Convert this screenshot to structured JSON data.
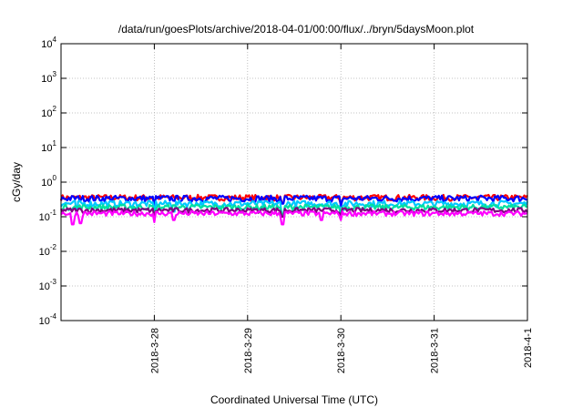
{
  "chart_data": {
    "type": "line",
    "title": "/data/run/goesPlots/archive/2018-04-01/00:00/flux/../bryn/5daysMoon.plot",
    "xlabel": "Coordinated Universal Time (UTC)",
    "ylabel": "cGy/day",
    "y_scale": "log",
    "ylim": [
      0.0001,
      10000
    ],
    "y_ticks": [
      {
        "value": 10000,
        "base": "10",
        "exp": "4"
      },
      {
        "value": 1000,
        "base": "10",
        "exp": "3"
      },
      {
        "value": 100,
        "base": "10",
        "exp": "2"
      },
      {
        "value": 10,
        "base": "10",
        "exp": "1"
      },
      {
        "value": 1,
        "base": "10",
        "exp": "0"
      },
      {
        "value": 0.1,
        "base": "10",
        "exp": "-1"
      },
      {
        "value": 0.01,
        "base": "10",
        "exp": "-2"
      },
      {
        "value": 0.001,
        "base": "10",
        "exp": "-3"
      },
      {
        "value": 0.0001,
        "base": "10",
        "exp": "-4"
      }
    ],
    "xlim": [
      "2018-03-27 00:00",
      "2018-04-01 00:00"
    ],
    "x_ticks": [
      "2018-3-28",
      "2018-3-29",
      "2018-3-30",
      "2018-3-31",
      "2018-4-1"
    ],
    "grid": true,
    "legend": "none",
    "series": [
      {
        "color": "#ff0000",
        "base": 0.36,
        "noise": 0.07,
        "dips": [
          {
            "x": "2018-03-28 00:00",
            "v": 0.22
          },
          {
            "x": "2018-03-29 09:00",
            "v": 0.25
          },
          {
            "x": "2018-03-30 00:00",
            "v": 0.22
          }
        ]
      },
      {
        "color": "#0000ff",
        "base": 0.34,
        "noise": 0.07,
        "dips": [
          {
            "x": "2018-03-28 00:00",
            "v": 0.2
          },
          {
            "x": "2018-03-29 09:00",
            "v": 0.24
          },
          {
            "x": "2018-03-30 00:00",
            "v": 0.2
          }
        ]
      },
      {
        "color": "#00c8ff",
        "base": 0.24,
        "noise": 0.05,
        "dips": [
          {
            "x": "2018-03-27 04:00",
            "v": 0.12
          },
          {
            "x": "2018-03-28 00:00",
            "v": 0.12
          },
          {
            "x": "2018-03-28 05:00",
            "v": 0.14
          },
          {
            "x": "2018-03-29 09:00",
            "v": 0.11
          },
          {
            "x": "2018-03-30 00:00",
            "v": 0.11
          }
        ]
      },
      {
        "color": "#00e0a0",
        "base": 0.19,
        "noise": 0.035,
        "dips": [
          {
            "x": "2018-03-28 00:00",
            "v": 0.12
          },
          {
            "x": "2018-03-29 09:00",
            "v": 0.12
          },
          {
            "x": "2018-03-30 00:00",
            "v": 0.12
          }
        ]
      },
      {
        "color": "#800080",
        "base": 0.155,
        "noise": 0.025,
        "dips": [
          {
            "x": "2018-03-28 00:00",
            "v": 0.1
          },
          {
            "x": "2018-03-29 09:00",
            "v": 0.1
          },
          {
            "x": "2018-03-30 00:00",
            "v": 0.1
          }
        ]
      },
      {
        "color": "#ff00ff",
        "base": 0.125,
        "noise": 0.02,
        "dips": [
          {
            "x": "2018-03-27 03:00",
            "v": 0.06
          },
          {
            "x": "2018-03-27 05:00",
            "v": 0.065
          },
          {
            "x": "2018-03-28 00:00",
            "v": 0.07
          },
          {
            "x": "2018-03-28 05:00",
            "v": 0.08
          },
          {
            "x": "2018-03-29 09:00",
            "v": 0.06
          },
          {
            "x": "2018-03-29 19:00",
            "v": 0.08
          },
          {
            "x": "2018-03-30 00:00",
            "v": 0.08
          }
        ]
      }
    ]
  }
}
